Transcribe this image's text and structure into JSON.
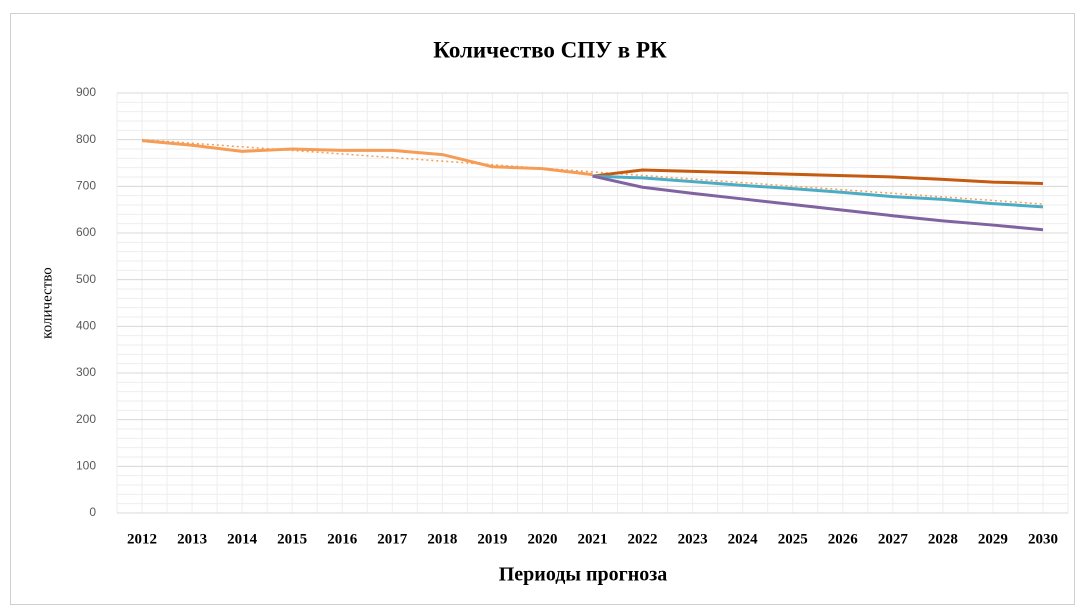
{
  "chart_data": {
    "type": "line",
    "title": "Количество СПУ в РК",
    "x_label": "Периоды прогноза",
    "y_label": "количество",
    "categories": [
      "2012",
      "2013",
      "2014",
      "2015",
      "2016",
      "2017",
      "2018",
      "2019",
      "2020",
      "2021",
      "2022",
      "2023",
      "2024",
      "2025",
      "2026",
      "2027",
      "2028",
      "2029",
      "2030"
    ],
    "series": [
      {
        "color": "#f59d56",
        "values": [
          798,
          788,
          775,
          780,
          777,
          777,
          768,
          742,
          738,
          725,
          null,
          null,
          null,
          null,
          null,
          null,
          null,
          null,
          null
        ]
      },
      {
        "color": "#c55a11",
        "values": [
          null,
          null,
          null,
          null,
          null,
          null,
          null,
          null,
          null,
          722,
          735,
          732,
          729,
          726,
          723,
          720,
          715,
          709,
          706
        ]
      },
      {
        "color": "#4bacc6",
        "values": [
          null,
          null,
          null,
          null,
          null,
          null,
          null,
          null,
          null,
          722,
          718,
          710,
          702,
          695,
          687,
          678,
          672,
          663,
          656
        ]
      },
      {
        "color": "#8064a2",
        "values": [
          null,
          null,
          null,
          null,
          null,
          null,
          null,
          null,
          null,
          722,
          698,
          685,
          673,
          661,
          649,
          637,
          626,
          617,
          607
        ]
      }
    ],
    "trendline": {
      "color": "#f59d56",
      "values": [
        800,
        662
      ]
    },
    "ylim": [
      0,
      900
    ],
    "yticks": [
      0,
      100,
      200,
      300,
      400,
      500,
      600,
      700,
      800,
      900
    ],
    "grid": true,
    "minor_grid": true
  }
}
